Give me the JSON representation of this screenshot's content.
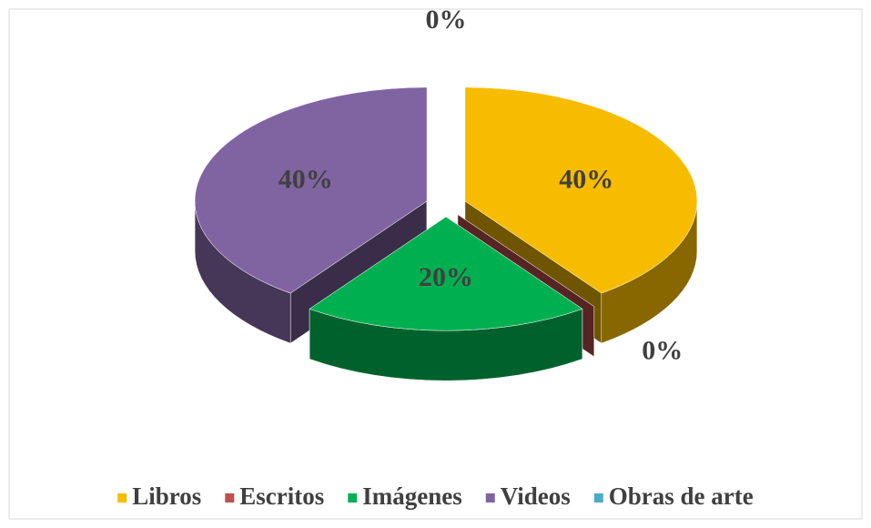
{
  "chart_data": {
    "type": "pie3d",
    "categories": [
      "Libros",
      "Escritos",
      "Imágenes",
      "Videos",
      "Obras de arte"
    ],
    "values": [
      40,
      0,
      20,
      40,
      0
    ],
    "value_labels": [
      "40%",
      "0%",
      "20%",
      "40%",
      "0%"
    ],
    "colors": [
      "#f7bc00",
      "#c0504d",
      "#00b050",
      "#8064a2",
      "#4bacc6"
    ],
    "legend": "bottom"
  }
}
